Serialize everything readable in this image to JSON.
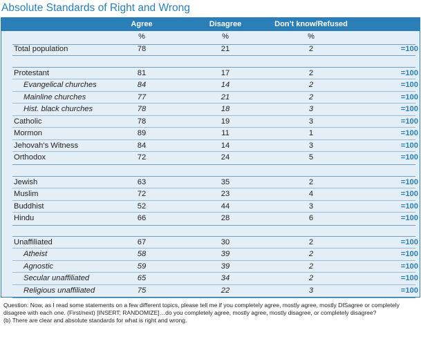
{
  "title": "Absolute Standards of Right and Wrong",
  "headers": {
    "agree": "Agree",
    "disagree": "Disagree",
    "dk": "Don’t know/Refused"
  },
  "units": {
    "agree": "%",
    "disagree": "%",
    "dk": "%"
  },
  "total_label": "=100",
  "rows": [
    {
      "label": "Total population",
      "agree": "78",
      "disagree": "21",
      "dk": "2"
    },
    {
      "label": "Protestant",
      "agree": "81",
      "disagree": "17",
      "dk": "2"
    },
    {
      "label": "Evangelical churches",
      "agree": "84",
      "disagree": "14",
      "dk": "2"
    },
    {
      "label": "Mainline churches",
      "agree": "77",
      "disagree": "21",
      "dk": "2"
    },
    {
      "label": "Hist. black churches",
      "agree": "78",
      "disagree": "18",
      "dk": "3"
    },
    {
      "label": "Catholic",
      "agree": "78",
      "disagree": "19",
      "dk": "3"
    },
    {
      "label": "Mormon",
      "agree": "89",
      "disagree": "11",
      "dk": "1"
    },
    {
      "label": "Jehovah’s Witness",
      "agree": "84",
      "disagree": "14",
      "dk": "3"
    },
    {
      "label": "Orthodox",
      "agree": "72",
      "disagree": "24",
      "dk": "5"
    },
    {
      "label": "Jewish",
      "agree": "63",
      "disagree": "35",
      "dk": "2"
    },
    {
      "label": "Muslim",
      "agree": "72",
      "disagree": "23",
      "dk": "4"
    },
    {
      "label": "Buddhist",
      "agree": "52",
      "disagree": "44",
      "dk": "3"
    },
    {
      "label": "Hindu",
      "agree": "66",
      "disagree": "28",
      "dk": "6"
    },
    {
      "label": "Unaffiliated",
      "agree": "67",
      "disagree": "30",
      "dk": "2"
    },
    {
      "label": "Atheist",
      "agree": "58",
      "disagree": "39",
      "dk": "2"
    },
    {
      "label": "Agnostic",
      "agree": "59",
      "disagree": "39",
      "dk": "2"
    },
    {
      "label": "Secular unaffiliated",
      "agree": "65",
      "disagree": "34",
      "dk": "2"
    },
    {
      "label": "Religious unaffiliated",
      "agree": "75",
      "disagree": "22",
      "dk": "3"
    }
  ],
  "notes": {
    "question": "Question: Now, as I read some statements on a few different topics, please tell me if you completely agree, mostly agree, mostly DISagree or completely disagree with each one. (First/next) [INSERT; RANDOMIZE]…do you completely agree, mostly agree, mostly disagree, or completely disagree?",
    "item": "(b) There are clear and absolute standards for what is right and wrong."
  }
}
